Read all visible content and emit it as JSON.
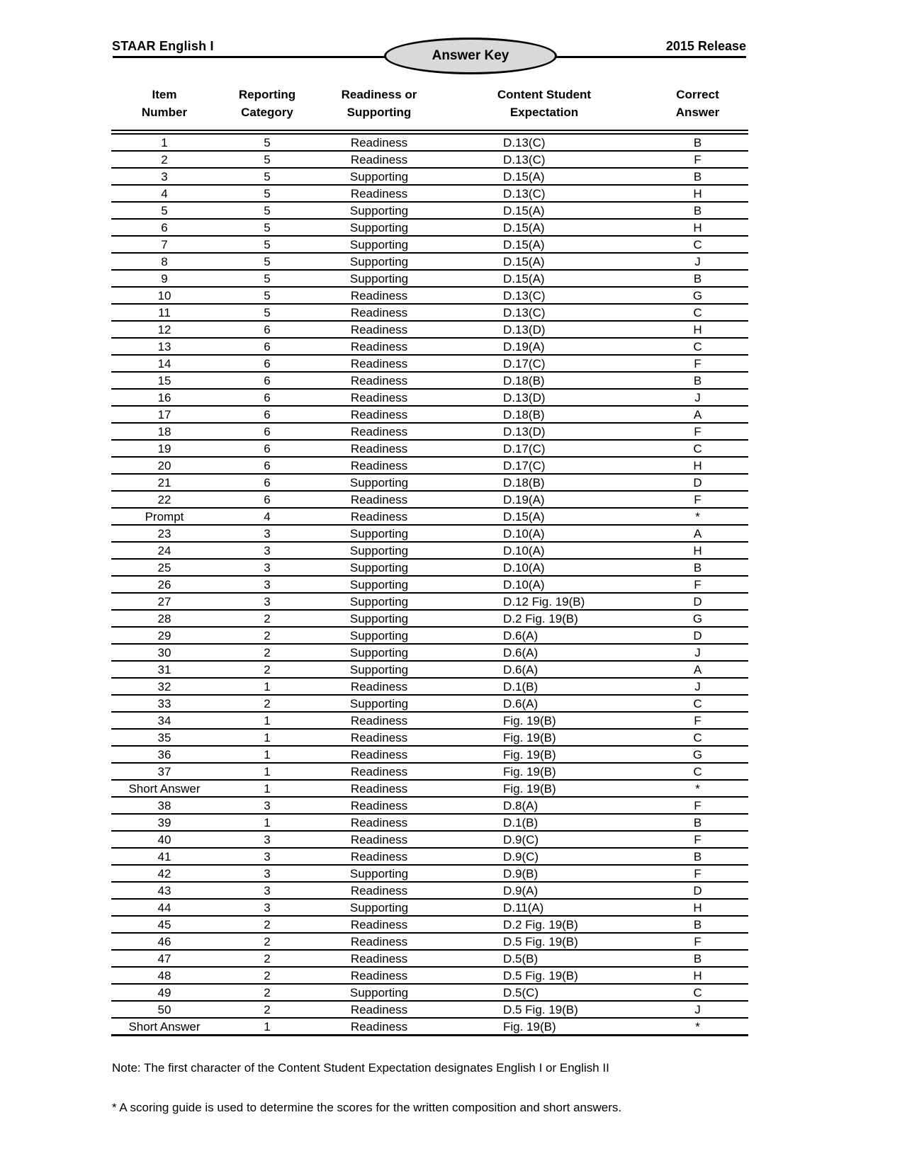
{
  "page": {
    "title_left": "STAAR English I",
    "title_right": "2015 Release",
    "badge": "Answer Key"
  },
  "table": {
    "headers": [
      {
        "line1": "Item",
        "line2": "Number"
      },
      {
        "line1": "Reporting",
        "line2": "Category"
      },
      {
        "line1": "Readiness or",
        "line2": "Supporting"
      },
      {
        "line1": "Content Student",
        "line2": "Expectation"
      },
      {
        "line1": "Correct",
        "line2": "Answer"
      }
    ],
    "rows": [
      [
        "1",
        "5",
        "Readiness",
        "D.13(C)",
        "B"
      ],
      [
        "2",
        "5",
        "Readiness",
        "D.13(C)",
        "F"
      ],
      [
        "3",
        "5",
        "Supporting",
        "D.15(A)",
        "B"
      ],
      [
        "4",
        "5",
        "Readiness",
        "D.13(C)",
        "H"
      ],
      [
        "5",
        "5",
        "Supporting",
        "D.15(A)",
        "B"
      ],
      [
        "6",
        "5",
        "Supporting",
        "D.15(A)",
        "H"
      ],
      [
        "7",
        "5",
        "Supporting",
        "D.15(A)",
        "C"
      ],
      [
        "8",
        "5",
        "Supporting",
        "D.15(A)",
        "J"
      ],
      [
        "9",
        "5",
        "Supporting",
        "D.15(A)",
        "B"
      ],
      [
        "10",
        "5",
        "Readiness",
        "D.13(C)",
        "G"
      ],
      [
        "11",
        "5",
        "Readiness",
        "D.13(C)",
        "C"
      ],
      [
        "12",
        "6",
        "Readiness",
        "D.13(D)",
        "H"
      ],
      [
        "13",
        "6",
        "Readiness",
        "D.19(A)",
        "C"
      ],
      [
        "14",
        "6",
        "Readiness",
        "D.17(C)",
        "F"
      ],
      [
        "15",
        "6",
        "Readiness",
        "D.18(B)",
        "B"
      ],
      [
        "16",
        "6",
        "Readiness",
        "D.13(D)",
        "J"
      ],
      [
        "17",
        "6",
        "Readiness",
        "D.18(B)",
        "A"
      ],
      [
        "18",
        "6",
        "Readiness",
        "D.13(D)",
        "F"
      ],
      [
        "19",
        "6",
        "Readiness",
        "D.17(C)",
        "C"
      ],
      [
        "20",
        "6",
        "Readiness",
        "D.17(C)",
        "H"
      ],
      [
        "21",
        "6",
        "Supporting",
        "D.18(B)",
        "D"
      ],
      [
        "22",
        "6",
        "Readiness",
        "D.19(A)",
        "F"
      ],
      [
        "Prompt",
        "4",
        "Readiness",
        "D.15(A)",
        "*"
      ],
      [
        "23",
        "3",
        "Supporting",
        "D.10(A)",
        "A"
      ],
      [
        "24",
        "3",
        "Supporting",
        "D.10(A)",
        "H"
      ],
      [
        "25",
        "3",
        "Supporting",
        "D.10(A)",
        "B"
      ],
      [
        "26",
        "3",
        "Supporting",
        "D.10(A)",
        "F"
      ],
      [
        "27",
        "3",
        "Supporting",
        "D.12 Fig. 19(B)",
        "D"
      ],
      [
        "28",
        "2",
        "Supporting",
        "D.2 Fig. 19(B)",
        "G"
      ],
      [
        "29",
        "2",
        "Supporting",
        "D.6(A)",
        "D"
      ],
      [
        "30",
        "2",
        "Supporting",
        "D.6(A)",
        "J"
      ],
      [
        "31",
        "2",
        "Supporting",
        "D.6(A)",
        "A"
      ],
      [
        "32",
        "1",
        "Readiness",
        "D.1(B)",
        "J"
      ],
      [
        "33",
        "2",
        "Supporting",
        "D.6(A)",
        "C"
      ],
      [
        "34",
        "1",
        "Readiness",
        "Fig. 19(B)",
        "F"
      ],
      [
        "35",
        "1",
        "Readiness",
        "Fig. 19(B)",
        "C"
      ],
      [
        "36",
        "1",
        "Readiness",
        "Fig. 19(B)",
        "G"
      ],
      [
        "37",
        "1",
        "Readiness",
        "Fig. 19(B)",
        "C"
      ],
      [
        "Short Answer",
        "1",
        "Readiness",
        "Fig. 19(B)",
        "*"
      ],
      [
        "38",
        "3",
        "Readiness",
        "D.8(A)",
        "F"
      ],
      [
        "39",
        "1",
        "Readiness",
        "D.1(B)",
        "B"
      ],
      [
        "40",
        "3",
        "Readiness",
        "D.9(C)",
        "F"
      ],
      [
        "41",
        "3",
        "Readiness",
        "D.9(C)",
        "B"
      ],
      [
        "42",
        "3",
        "Supporting",
        "D.9(B)",
        "F"
      ],
      [
        "43",
        "3",
        "Readiness",
        "D.9(A)",
        "D"
      ],
      [
        "44",
        "3",
        "Supporting",
        "D.11(A)",
        "H"
      ],
      [
        "45",
        "2",
        "Readiness",
        "D.2 Fig. 19(B)",
        "B"
      ],
      [
        "46",
        "2",
        "Readiness",
        "D.5 Fig. 19(B)",
        "F"
      ],
      [
        "47",
        "2",
        "Readiness",
        "D.5(B)",
        "B"
      ],
      [
        "48",
        "2",
        "Readiness",
        "D.5 Fig. 19(B)",
        "H"
      ],
      [
        "49",
        "2",
        "Supporting",
        "D.5(C)",
        "C"
      ],
      [
        "50",
        "2",
        "Readiness",
        "D.5 Fig. 19(B)",
        "J"
      ],
      [
        "Short Answer",
        "1",
        "Readiness",
        "Fig. 19(B)",
        "*"
      ]
    ]
  },
  "footer": {
    "note": "Note: The first character of the Content Student Expectation designates English I or English II",
    "scoring_note": "* A scoring guide is used to determine the scores for the written composition and short answers."
  }
}
